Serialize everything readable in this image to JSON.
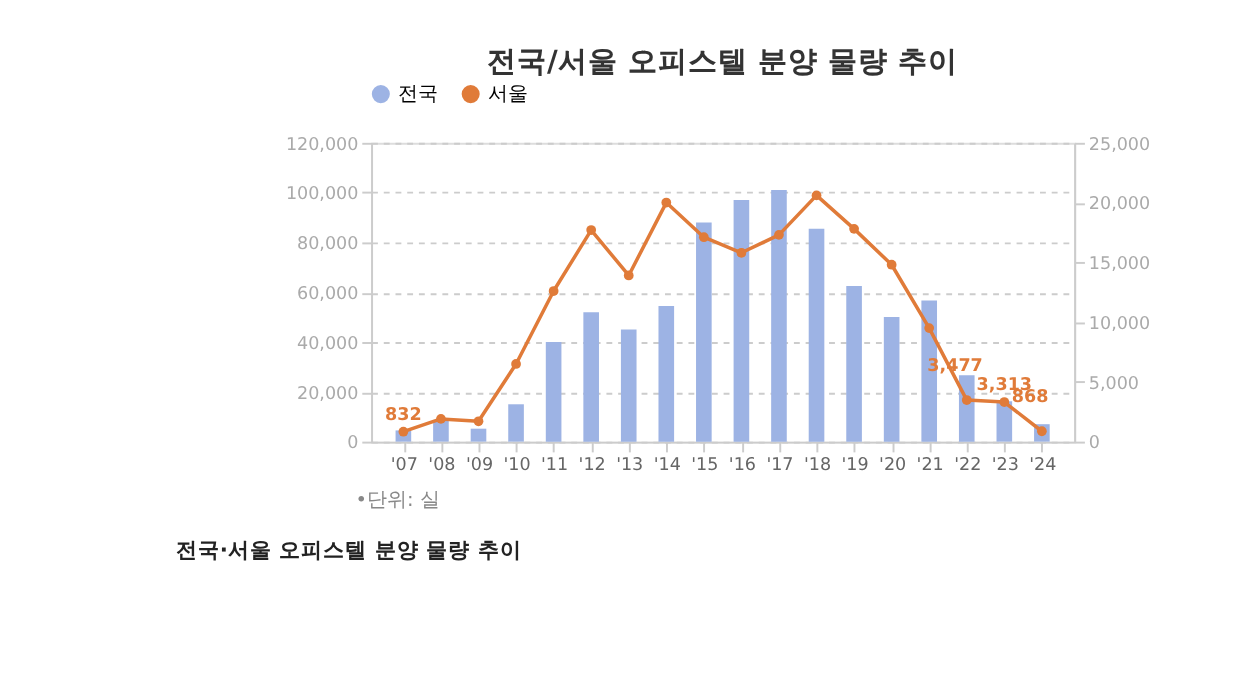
{
  "chart_data": {
    "type": "bar",
    "title": "전국/서울 오피스텔 분양 물량 추이",
    "categories": [
      "'07",
      "'08",
      "'09",
      "'10",
      "'11",
      "'12",
      "'13",
      "'14",
      "'15",
      "'16",
      "'17",
      "'18",
      "'19",
      "'20",
      "'21",
      "'22",
      "'23",
      "'24"
    ],
    "series": [
      {
        "name": "전국",
        "color": "#9db3e4",
        "values": [
          4500,
          8500,
          5200,
          15000,
          40000,
          52000,
          45000,
          54500,
          88000,
          97000,
          101000,
          85500,
          62500,
          50000,
          56700,
          26700,
          16200,
          7000
        ]
      },
      {
        "name": "서울",
        "type": "line",
        "axis": "y2",
        "color": "#e07b39",
        "marker": "circle",
        "values": [
          832,
          1900,
          1700,
          6500,
          12600,
          17700,
          13900,
          20000,
          17100,
          15800,
          17300,
          20600,
          17800,
          14800,
          9500,
          3477,
          3313,
          868
        ],
        "value_labels": [
          "832",
          null,
          null,
          null,
          null,
          null,
          null,
          null,
          null,
          null,
          null,
          null,
          null,
          null,
          null,
          "3,477",
          "3,313",
          "868"
        ]
      }
    ],
    "ylim": [
      0,
      120000
    ],
    "yticks": [
      0,
      {
        "value": 20000,
        "label": "20,000"
      },
      {
        "value": 40000,
        "label": "40,000"
      },
      {
        "value": 60000,
        "label": "60,000"
      },
      {
        "value": 80000,
        "label": "80,000"
      },
      {
        "value": 100000,
        "label": "100,000"
      },
      {
        "value": 120000,
        "label": "120,000"
      }
    ],
    "y2lim": [
      0,
      25000
    ],
    "y2ticks": [
      0,
      {
        "value": 5000,
        "label": "5,000"
      },
      {
        "value": 10000,
        "label": "10,000"
      },
      {
        "value": 15000,
        "label": "15,000"
      },
      {
        "value": 20000,
        "label": "20,000"
      },
      {
        "value": 25000,
        "label": "25,000"
      }
    ],
    "grid": "y",
    "legend": "top",
    "annotations": [
      "•단위: 실",
      "전국·서울 오피스텔 분양 물량 추이"
    ]
  }
}
